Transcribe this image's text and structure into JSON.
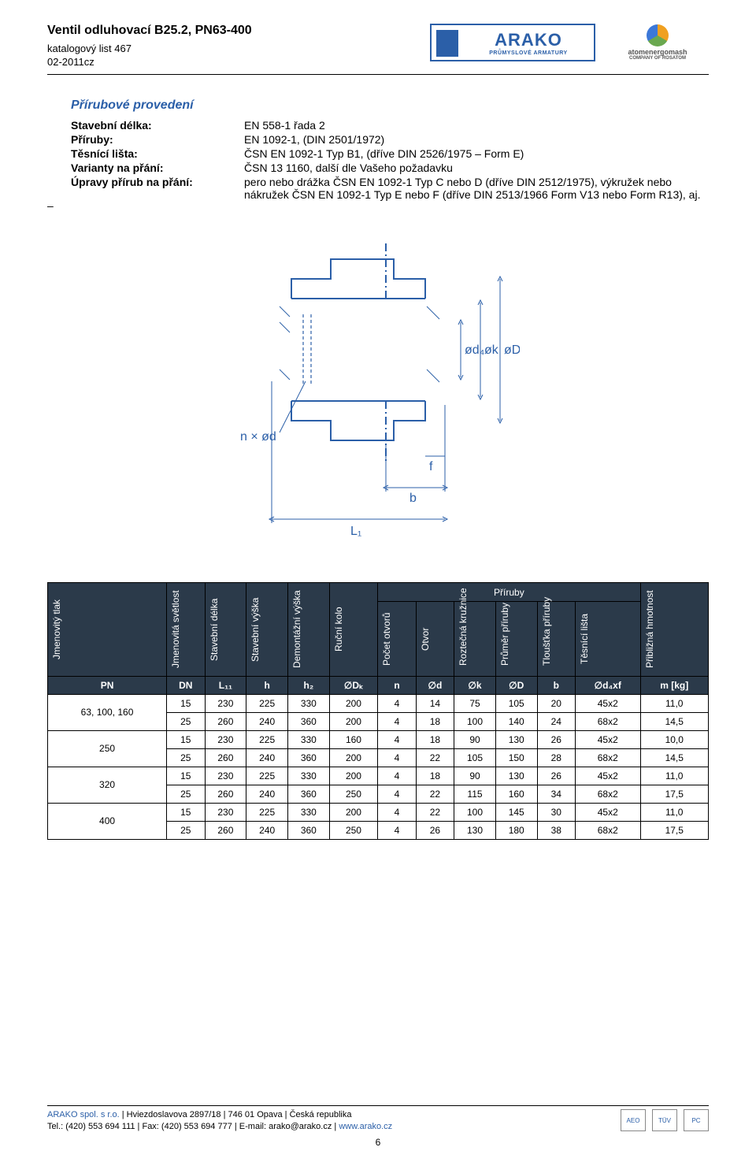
{
  "header": {
    "title": "Ventil odluhovací B25.2, PN63-400",
    "subtitle_line1": "katalogový list 467",
    "subtitle_line2": "02-2011cz",
    "logo1_big": "ARAKO",
    "logo1_small": "PRŮMYSLOVÉ ARMATURY",
    "logo2_line1": "atomenergomash",
    "logo2_line2": "COMPANY OF ROSATOM"
  },
  "section": {
    "title": "Přírubové provedení",
    "rows": [
      {
        "label": "Stavební délka:",
        "value": "EN 558-1 řada 2"
      },
      {
        "label": "Příruby:",
        "value": "EN 1092-1, (DIN 2501/1972)"
      },
      {
        "label": "Těsnící lišta:",
        "value": "ČSN EN 1092-1 Typ B1, (dříve DIN 2526/1975 – Form E)"
      },
      {
        "label": "Varianty na přání:",
        "value": "ČSN 13 1160, další dle Vašeho požadavku"
      },
      {
        "label": "Úpravy přírub na přání:",
        "value": "pero nebo drážka ČSN EN 1092-1 Typ C nebo D (dříve DIN 2512/1975), výkružek nebo nákružek ČSN EN 1092-1 Typ E nebo F (dříve DIN 2513/1966 Form V13 nebo Form R13), aj."
      }
    ],
    "dash": "–"
  },
  "diagram": {
    "stroke_color": "#2b5fa8",
    "labels": {
      "L1": "L₁",
      "b": "b",
      "f": "f",
      "n_x_d": "n × ød",
      "d4": "ød₄",
      "k": "øk",
      "D": "øD"
    }
  },
  "table": {
    "headers": {
      "jmen_tlak": "Jmenovitý tlak",
      "jmen_svet": "Jmenovitá světlost",
      "stav_delka": "Stavební délka",
      "stav_vyska": "Stavební výška",
      "dem_vyska": "Demontážní výška",
      "rucni_kolo": "Ruční kolo",
      "priruby_group": "Příruby",
      "pocet_otvoru": "Počet otvorů",
      "otvor": "Otvor",
      "roztec": "Roztečná kružnice",
      "prumer_pr": "Průměr příruby",
      "tloustka": "Tloušťka příruby",
      "tes_lista": "Těsnící lišta",
      "hmotnost": "Přibližná hmotnost"
    },
    "sym_row": [
      "PN",
      "DN",
      "L₁₁",
      "h",
      "h₂",
      "∅Dₖ",
      "n",
      "∅d",
      "∅k",
      "∅D",
      "b",
      "∅d₄xf",
      "m [kg]"
    ],
    "groups": [
      {
        "pn": "63, 100, 160",
        "rows": [
          [
            "15",
            "230",
            "225",
            "330",
            "200",
            "4",
            "14",
            "75",
            "105",
            "20",
            "45x2",
            "11,0"
          ],
          [
            "25",
            "260",
            "240",
            "360",
            "200",
            "4",
            "18",
            "100",
            "140",
            "24",
            "68x2",
            "14,5"
          ]
        ]
      },
      {
        "pn": "250",
        "rows": [
          [
            "15",
            "230",
            "225",
            "330",
            "160",
            "4",
            "18",
            "90",
            "130",
            "26",
            "45x2",
            "10,0"
          ],
          [
            "25",
            "260",
            "240",
            "360",
            "200",
            "4",
            "22",
            "105",
            "150",
            "28",
            "68x2",
            "14,5"
          ]
        ]
      },
      {
        "pn": "320",
        "rows": [
          [
            "15",
            "230",
            "225",
            "330",
            "200",
            "4",
            "18",
            "90",
            "130",
            "26",
            "45x2",
            "11,0"
          ],
          [
            "25",
            "260",
            "240",
            "360",
            "250",
            "4",
            "22",
            "115",
            "160",
            "34",
            "68x2",
            "17,5"
          ]
        ]
      },
      {
        "pn": "400",
        "rows": [
          [
            "15",
            "230",
            "225",
            "330",
            "200",
            "4",
            "22",
            "100",
            "145",
            "30",
            "45x2",
            "11,0"
          ],
          [
            "25",
            "260",
            "240",
            "360",
            "250",
            "4",
            "26",
            "130",
            "180",
            "38",
            "68x2",
            "17,5"
          ]
        ]
      }
    ],
    "colors": {
      "header_bg": "#2b3a4a",
      "header_fg": "#ffffff",
      "border": "#000000",
      "body_bg": "#ffffff"
    }
  },
  "footer": {
    "line1_a": "ARAKO spol. s r.o.",
    "line1_b": " | Hviezdoslavova 2897/18 | 746 01 Opava | Česká republika",
    "line2_a": "Tel.: (420) 553 694 111 | Fax: (420) 553 694 777 | E-mail: arako@arako.cz | ",
    "line2_link": "www.arako.cz",
    "logos": [
      "AEO",
      "TÜV",
      "PC"
    ],
    "pagenum": "6"
  }
}
